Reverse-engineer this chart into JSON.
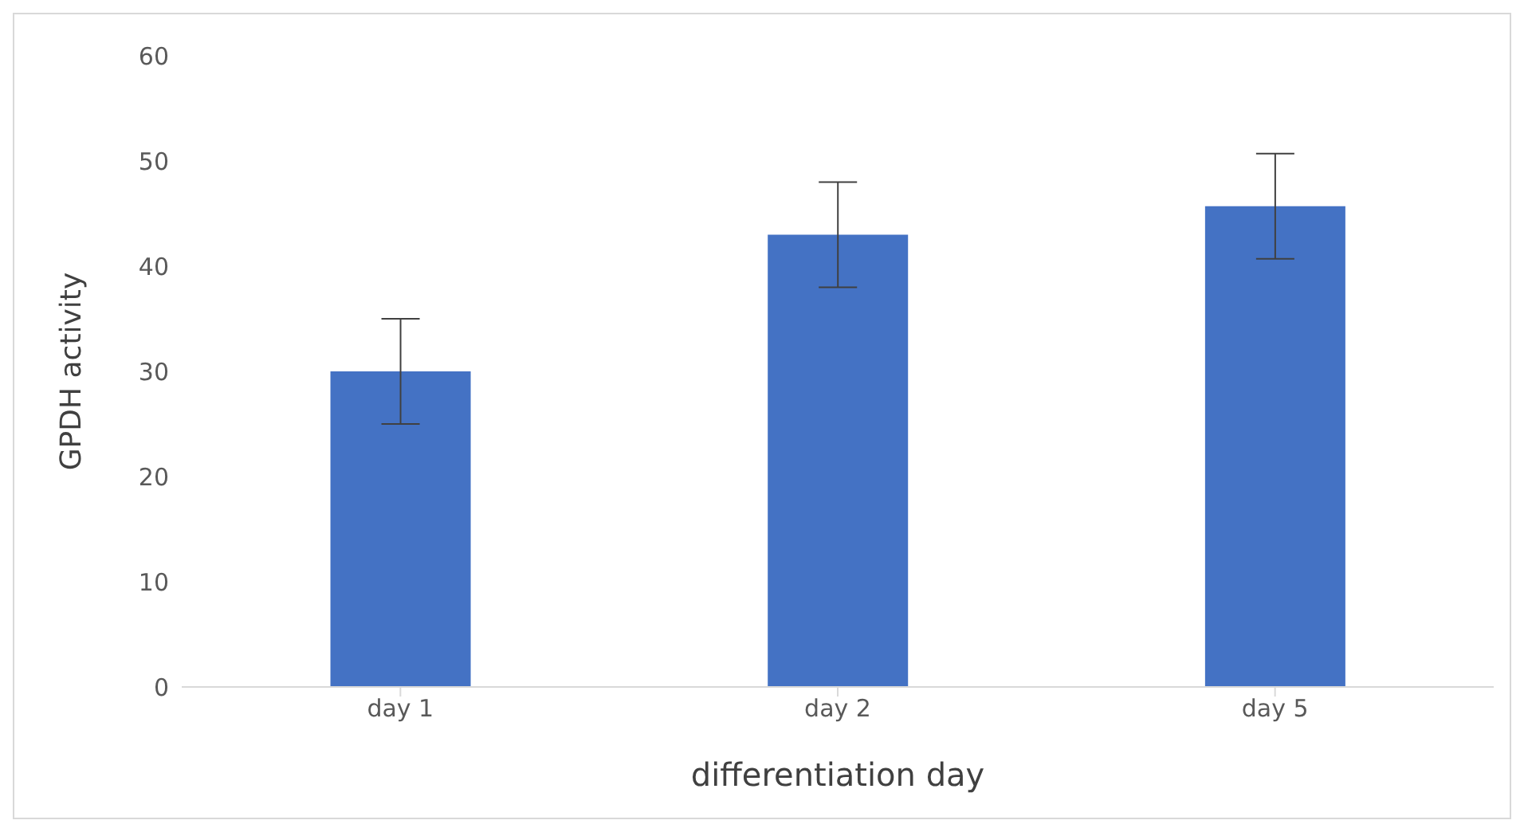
{
  "chart_data": {
    "type": "bar",
    "xlabel": "differentiation day",
    "ylabel": "GPDH activity",
    "categories": [
      "day 1",
      "day 2",
      "day 5"
    ],
    "values": [
      30,
      43,
      45.7
    ],
    "errors": [
      5,
      5,
      5
    ],
    "color": "#4472c4",
    "ylim": [
      0,
      60
    ],
    "yticks": [
      0,
      10,
      20,
      30,
      40,
      50,
      60
    ],
    "grid": false
  }
}
